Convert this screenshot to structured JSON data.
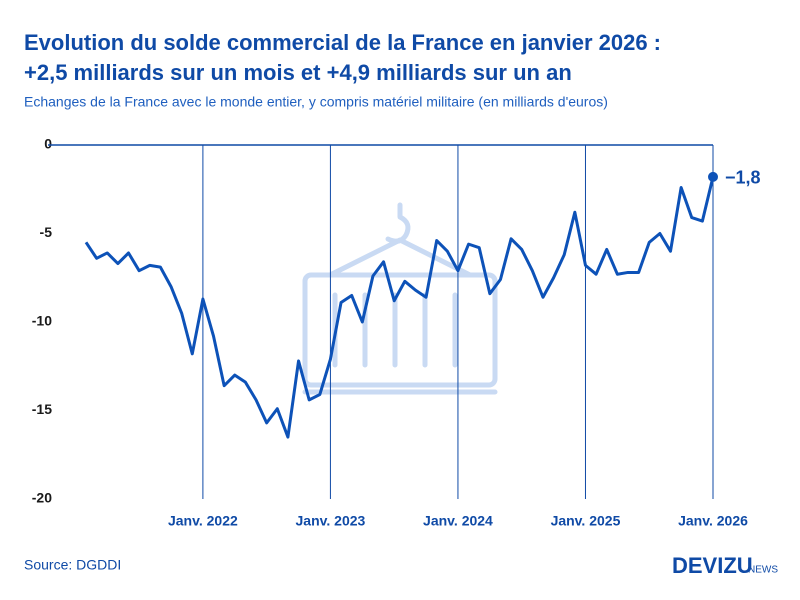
{
  "chart_data": {
    "type": "line",
    "title": "Evolution du solde commercial de la France en janvier 2026 :",
    "title_line2": "+2,5 milliards sur un mois et +4,9 milliards sur un an",
    "subtitle": "Echanges de la France avec le monde entier, y compris matériel militaire (en milliards d'euros)",
    "source": "Source: DGDDI",
    "brand": "DEVIZU",
    "brand_suffix": "NEWS",
    "categories": [
      null,
      null,
      null,
      null,
      null,
      null,
      null,
      null,
      null,
      null,
      null,
      "Janv. 2022",
      null,
      null,
      null,
      null,
      null,
      null,
      null,
      null,
      null,
      null,
      null,
      "Janv. 2023",
      null,
      null,
      null,
      null,
      null,
      null,
      null,
      null,
      null,
      null,
      null,
      "Janv. 2024",
      null,
      null,
      null,
      null,
      null,
      null,
      null,
      null,
      null,
      null,
      null,
      "Janv. 2025",
      null,
      null,
      null,
      null,
      null,
      null,
      null,
      null,
      null,
      null,
      null,
      "Janv. 2026"
    ],
    "series": [
      {
        "name": "Solde commercial",
        "color": "#0d52b8",
        "values": [
          -5.5,
          -6.4,
          -6.1,
          -6.7,
          -6.1,
          -7.1,
          -6.8,
          -6.9,
          -8.0,
          -9.5,
          -11.8,
          -8.7,
          -10.8,
          -13.6,
          -13.0,
          -13.4,
          -14.4,
          -15.7,
          -14.9,
          -16.5,
          -12.2,
          -14.4,
          -14.1,
          -12.1,
          -8.9,
          -8.5,
          -10.0,
          -7.4,
          -6.6,
          -8.8,
          -7.7,
          -8.2,
          -8.6,
          -5.4,
          -6.0,
          -7.1,
          -5.6,
          -5.8,
          -8.4,
          -7.6,
          -5.3,
          -5.9,
          -7.1,
          -8.6,
          -7.5,
          -6.2,
          -3.8,
          -6.8,
          -7.3,
          -5.9,
          -7.3,
          -7.2,
          -7.2,
          -5.5,
          -5.0,
          -6.0,
          -2.4,
          -4.1,
          -4.3,
          -1.8
        ],
        "value_labels": [
          null,
          null,
          null,
          null,
          null,
          null,
          null,
          null,
          null,
          null,
          null,
          null,
          null,
          null,
          null,
          null,
          null,
          null,
          null,
          null,
          null,
          null,
          null,
          null,
          null,
          null,
          null,
          null,
          null,
          null,
          null,
          null,
          null,
          null,
          null,
          null,
          null,
          null,
          null,
          null,
          null,
          null,
          null,
          null,
          null,
          null,
          null,
          null,
          null,
          null,
          null,
          null,
          null,
          null,
          null,
          null,
          null,
          null,
          null,
          "−1,8"
        ]
      }
    ],
    "ylim": [
      -20,
      0
    ],
    "yticks": [
      0,
      -5,
      -10,
      -15,
      -20
    ],
    "grid": true
  }
}
